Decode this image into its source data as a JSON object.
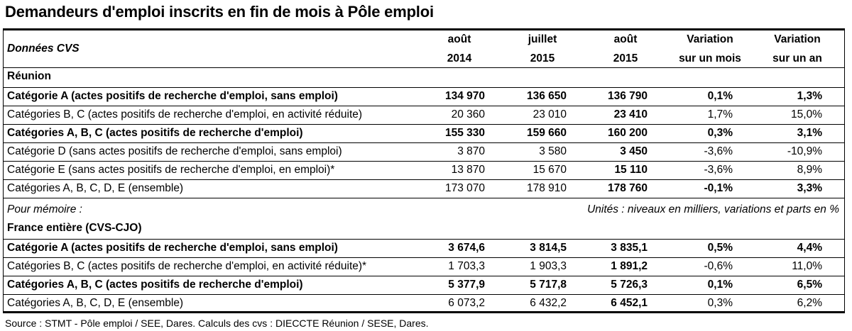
{
  "title": "Demandeurs d'emploi inscrits en fin de mois à Pôle emploi",
  "header": {
    "left": "Données CVS",
    "cols": [
      {
        "l1": "août",
        "l2": "2014"
      },
      {
        "l1": "juillet",
        "l2": "2015"
      },
      {
        "l1": "août",
        "l2": "2015"
      },
      {
        "l1": "Variation",
        "l2": "sur un mois"
      },
      {
        "l1": "Variation",
        "l2": "sur un an"
      }
    ]
  },
  "reunion": {
    "heading": "Réunion",
    "rows": [
      {
        "label": "Catégorie A (actes positifs de recherche d'emploi, sans emploi)",
        "v1": "134 970",
        "v2": "136 650",
        "v3": "136 790",
        "v4": "0,1%",
        "v5": "1,3%",
        "bold": true
      },
      {
        "label": "Catégories B, C (actes positifs de recherche d'emploi, en activité réduite)",
        "v1": "20 360",
        "v2": "23 010",
        "v3": "23 410",
        "v4": "1,7%",
        "v5": "15,0%",
        "bold": false
      },
      {
        "label": "Catégories A, B, C (actes positifs de recherche d'emploi)",
        "v1": "155 330",
        "v2": "159 660",
        "v3": "160 200",
        "v4": "0,3%",
        "v5": "3,1%",
        "bold": true
      },
      {
        "label": "Catégorie D (sans actes positifs de recherche d'emploi, sans emploi)",
        "v1": "3 870",
        "v2": "3 580",
        "v3": "3 450",
        "v4": "-3,6%",
        "v5": "-10,9%",
        "bold": false
      },
      {
        "label": "Catégorie E (sans actes positifs de recherche d'emploi, en emploi)*",
        "v1": "13 870",
        "v2": "15 670",
        "v3": "15 110",
        "v4": "-3,6%",
        "v5": "8,9%",
        "bold": false
      },
      {
        "label": "Catégories A, B, C, D, E (ensemble)",
        "v1": "173 070",
        "v2": "178 910",
        "v3": "178 760",
        "v4": "-0,1%",
        "v5": "3,3%",
        "bold": false,
        "lastboldvar": true
      }
    ]
  },
  "memo": {
    "left": "Pour mémoire :",
    "right": "Unités : niveaux en milliers, variations et parts en %"
  },
  "france": {
    "heading": "France entière (CVS-CJO)",
    "rows": [
      {
        "label": "Catégorie A (actes positifs de recherche d'emploi, sans emploi)",
        "v1": "3 674,6",
        "v2": "3 814,5",
        "v3": "3 835,1",
        "v4": "0,5%",
        "v5": "4,4%",
        "bold": true
      },
      {
        "label": "Catégories B, C (actes positifs de recherche d'emploi, en activité réduite)*",
        "v1": "1 703,3",
        "v2": "1 903,3",
        "v3": "1 891,2",
        "v4": "-0,6%",
        "v5": "11,0%",
        "bold": false
      },
      {
        "label": "Catégories A, B, C (actes positifs de recherche d'emploi)",
        "v1": "5 377,9",
        "v2": "5 717,8",
        "v3": "5 726,3",
        "v4": "0,1%",
        "v5": "6,5%",
        "bold": true
      },
      {
        "label": "Catégories A, B, C, D, E (ensemble)",
        "v1": "6 073,2",
        "v2": "6 432,2",
        "v3": "6 452,1",
        "v4": "0,3%",
        "v5": "6,2%",
        "bold": false
      }
    ]
  },
  "source": "Source : STMT - Pôle emploi / SEE, Dares. Calculs des cvs : DIECCTE Réunion / SESE, Dares."
}
